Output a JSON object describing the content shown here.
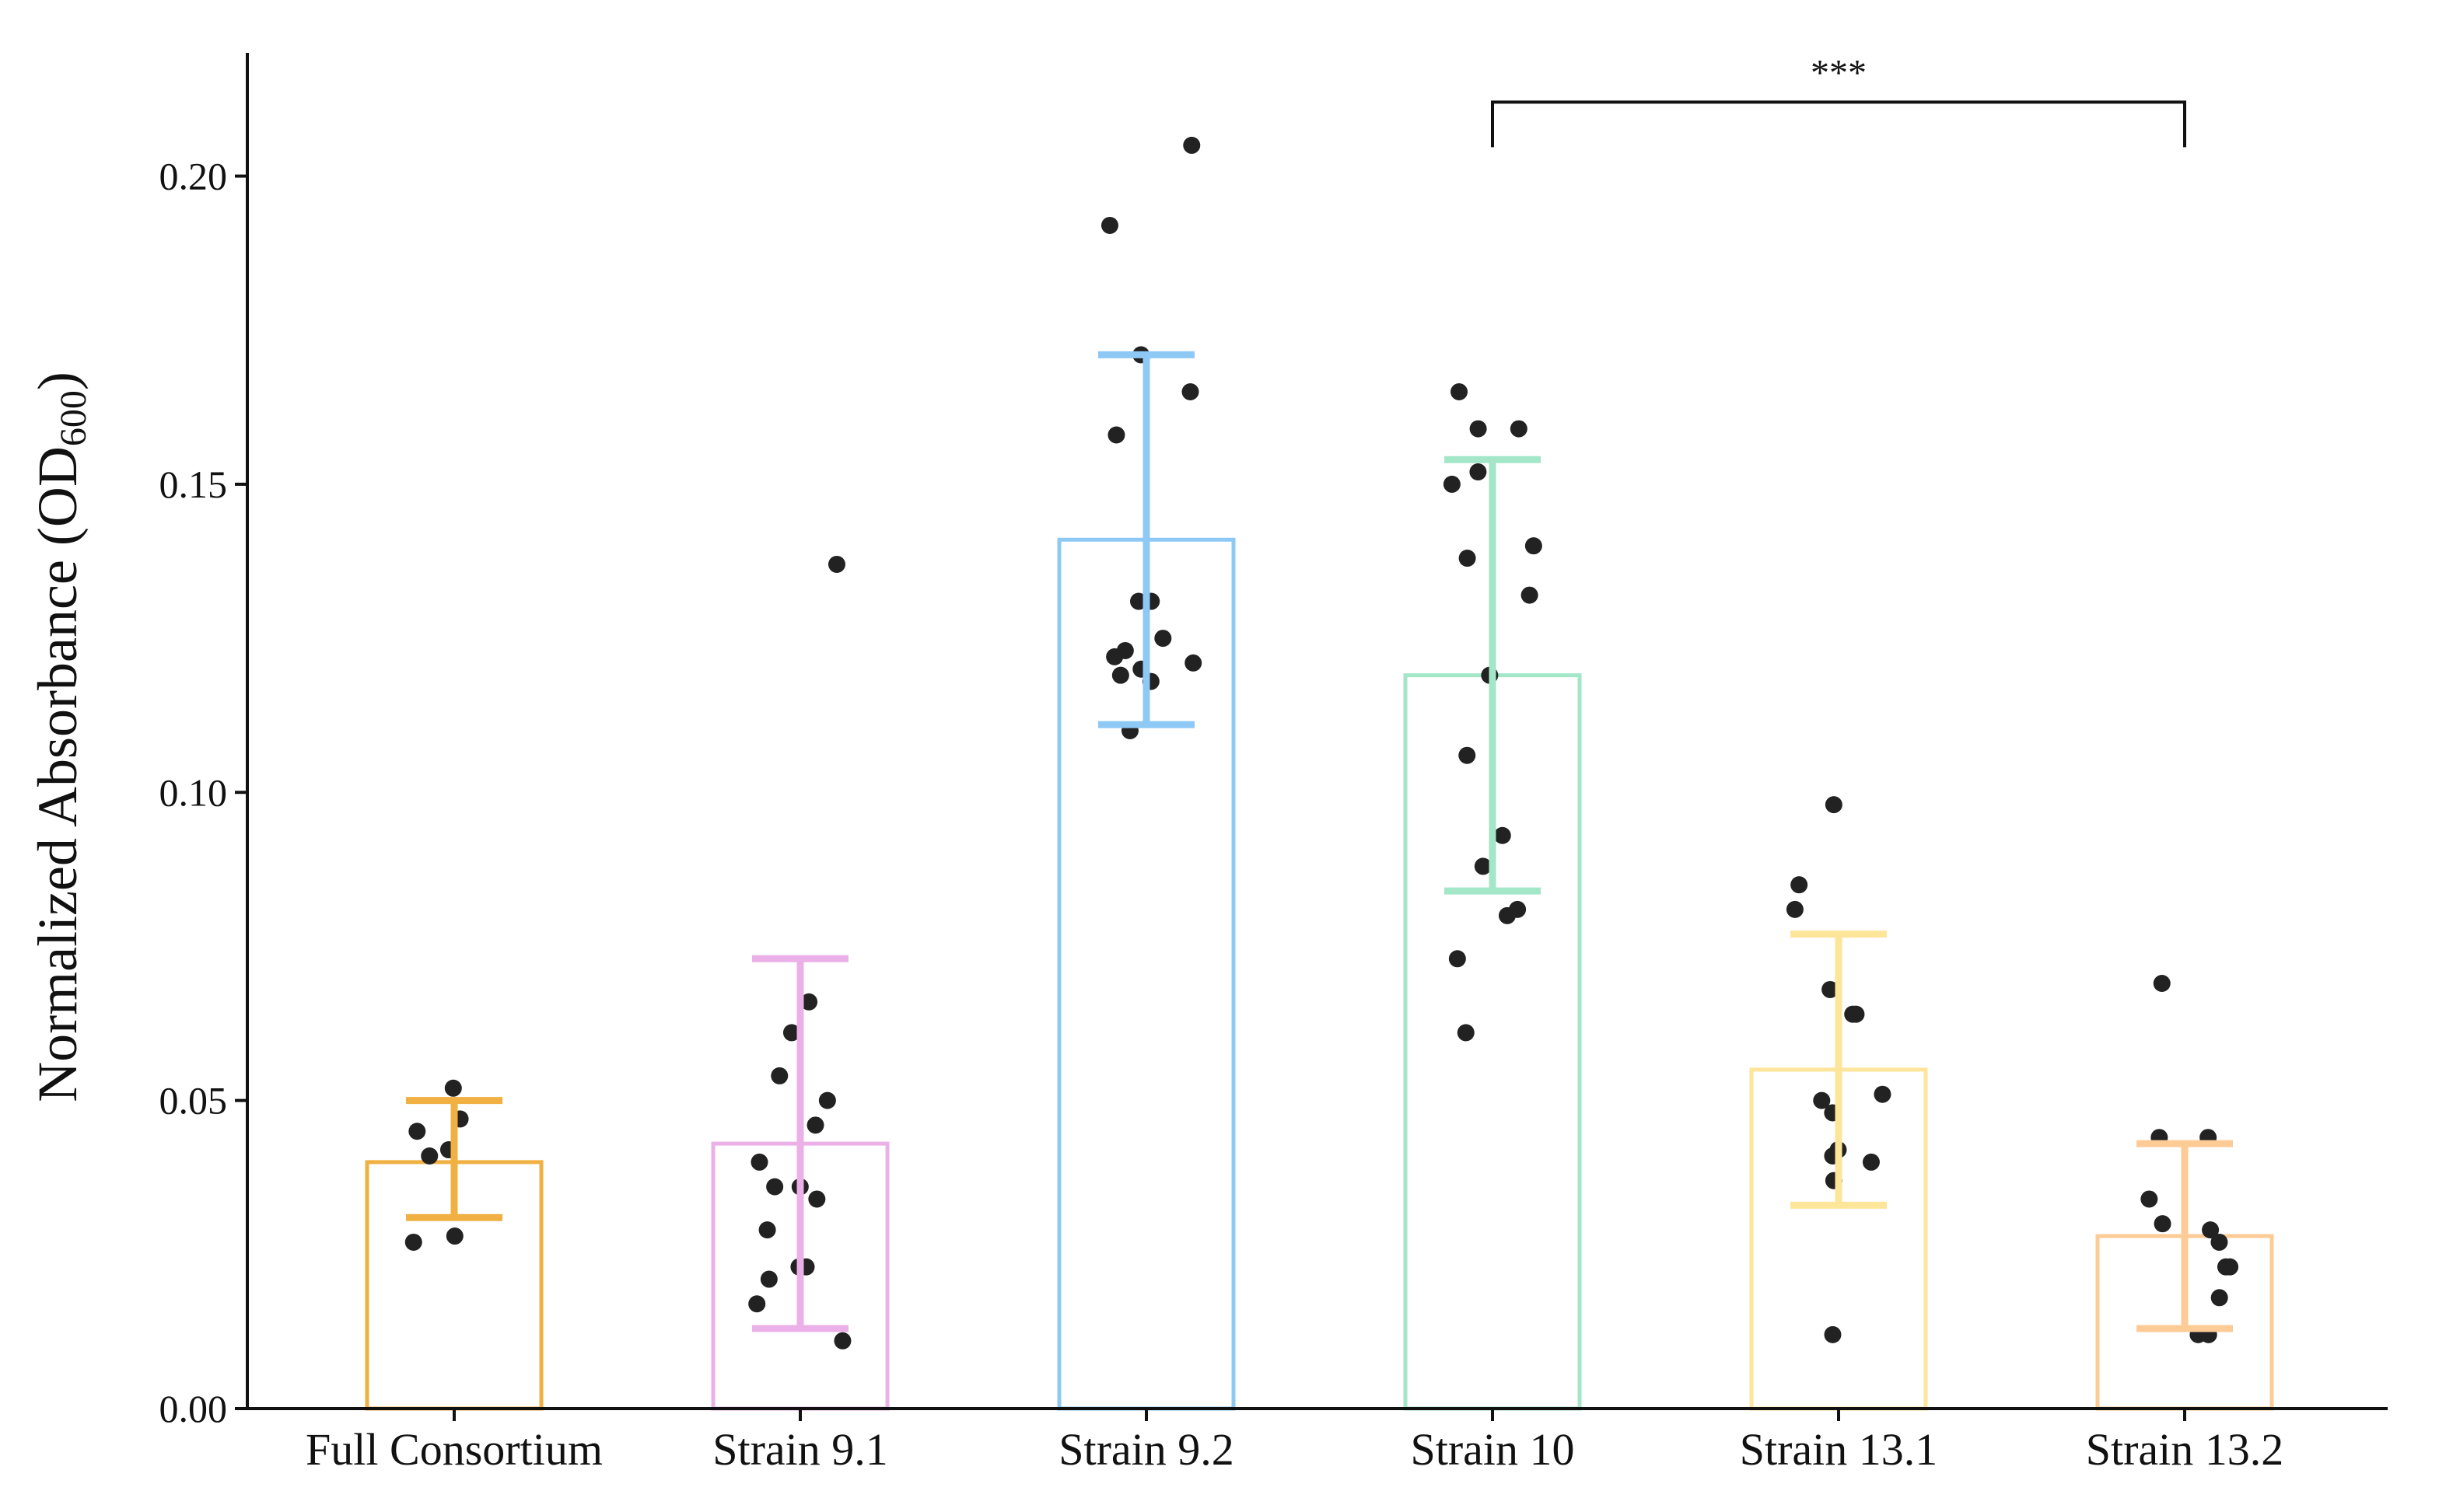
{
  "chart_data": {
    "type": "bar",
    "title": "",
    "xlabel": "",
    "ylabel": "Normalized Absorbance (OD600)",
    "ylabel_main": "Normalized Absorbance (OD",
    "ylabel_sub": "600",
    "ylabel_close": ")",
    "ylim": [
      0,
      0.22
    ],
    "yticks": [
      0.0,
      0.05,
      0.1,
      0.15,
      0.2
    ],
    "ytick_labels": [
      "0.00",
      "0.05",
      "0.10",
      "0.15",
      "0.20"
    ],
    "grid": false,
    "legend": "none",
    "categories": [
      "Full Consortium",
      "Strain 9.1",
      "Strain 9.2",
      "Strain 10",
      "Strain 13.1",
      "Strain 13.2"
    ],
    "colors": [
      "#f0b042",
      "#ecb0e8",
      "#8ec8f5",
      "#a3e6c8",
      "#fde59a",
      "#fdcb96"
    ],
    "means": [
      0.04,
      0.043,
      0.141,
      0.119,
      0.055,
      0.028
    ],
    "error_low": [
      0.031,
      0.013,
      0.111,
      0.084,
      0.033,
      0.013
    ],
    "error_high": [
      0.05,
      0.073,
      0.171,
      0.154,
      0.077,
      0.043
    ],
    "points": [
      [
        0.052,
        0.047,
        0.045,
        0.041,
        0.042,
        0.028,
        0.027
      ],
      [
        0.137,
        0.066,
        0.061,
        0.054,
        0.05,
        0.046,
        0.04,
        0.036,
        0.036,
        0.034,
        0.029,
        0.023,
        0.023,
        0.021,
        0.017,
        0.011
      ],
      [
        0.205,
        0.192,
        0.171,
        0.165,
        0.158,
        0.131,
        0.131,
        0.125,
        0.123,
        0.122,
        0.121,
        0.12,
        0.119,
        0.118,
        0.11
      ],
      [
        0.165,
        0.159,
        0.159,
        0.152,
        0.15,
        0.14,
        0.138,
        0.132,
        0.119,
        0.106,
        0.093,
        0.088,
        0.081,
        0.08,
        0.073,
        0.061
      ],
      [
        0.098,
        0.085,
        0.081,
        0.068,
        0.064,
        0.064,
        0.051,
        0.05,
        0.048,
        0.042,
        0.041,
        0.04,
        0.037,
        0.012
      ],
      [
        0.069,
        0.044,
        0.044,
        0.034,
        0.03,
        0.029,
        0.027,
        0.023,
        0.023,
        0.018,
        0.012,
        0.012
      ]
    ],
    "annotations": [
      {
        "type": "significance",
        "from": "Strain 10",
        "to": "Strain 13.2",
        "label": "***",
        "y": 0.212
      }
    ]
  }
}
